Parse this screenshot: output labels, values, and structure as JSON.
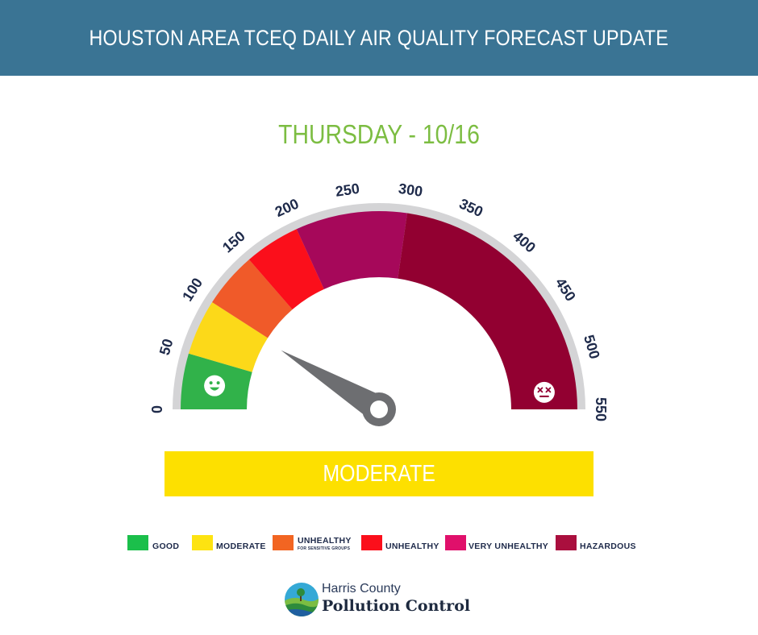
{
  "header": {
    "title": "HOUSTON AREA TCEQ DAILY AIR QUALITY FORECAST UPDATE",
    "background": "#3a7494"
  },
  "forecast": {
    "day_label": "THURSDAY - 10/16",
    "level_label": "MODERATE",
    "level_color": "#fde000",
    "needle_value": 95
  },
  "gauge": {
    "min": 0,
    "max": 550,
    "tick_labels": [
      "0",
      "50",
      "100",
      "150",
      "200",
      "250",
      "300",
      "350",
      "400",
      "450",
      "500",
      "550"
    ],
    "bands": [
      {
        "from": 0,
        "to": 50,
        "color": "#31b24a"
      },
      {
        "from": 50,
        "to": 100,
        "color": "#fcd919"
      },
      {
        "from": 100,
        "to": 150,
        "color": "#f05a29"
      },
      {
        "from": 150,
        "to": 200,
        "color": "#fb0f1b"
      },
      {
        "from": 200,
        "to": 300,
        "color": "#a6085a"
      },
      {
        "from": 300,
        "to": 550,
        "color": "#920031"
      }
    ],
    "good_face_icon": "smiling-face-icon",
    "hazardous_face_icon": "dizzy-face-icon"
  },
  "legend": {
    "items": [
      {
        "label": "GOOD",
        "color": "#1bbf4b"
      },
      {
        "label": "MODERATE",
        "color": "#fde311"
      },
      {
        "label": "UNHEALTHY",
        "sub": "FOR SENSITIVE GROUPS",
        "color": "#f26522"
      },
      {
        "label": "UNHEALTHY",
        "color": "#fb0f1b"
      },
      {
        "label": "VERY UNHEALTHY",
        "color": "#e0106b"
      },
      {
        "label": "HAZARDOUS",
        "color": "#aa0f3e"
      }
    ]
  },
  "logo": {
    "line1": "Harris County",
    "line2": "Pollution Control",
    "icon": "landscape-tree-logo-icon"
  }
}
